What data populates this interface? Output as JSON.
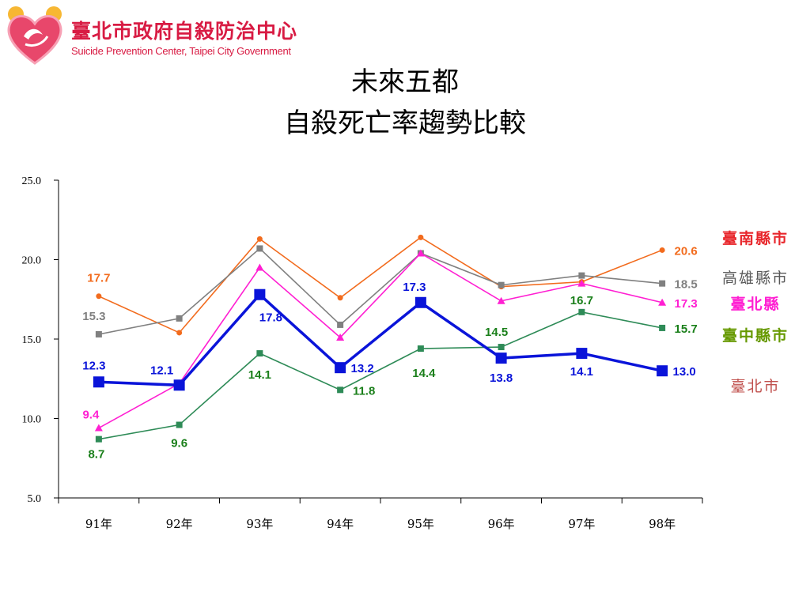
{
  "header": {
    "org_name_cn": "臺北市政府自殺防治中心",
    "org_name_en": "Suicide Prevention Center, Taipei City Government",
    "logo_icon": "heart-logo-icon"
  },
  "colors": {
    "brand": "#d81b43",
    "tainan_county": "#f26b1d",
    "kaohsiung_county": "#808080",
    "taipei_county": "#ff1fd2",
    "taichung_county": "#2e8b57",
    "taipei_city": "#0a14d9",
    "value_green": "#1a7f1a"
  },
  "chart_data": {
    "type": "line",
    "title": "未來五都",
    "subtitle": "自殺死亡率趨勢比較",
    "xlabel": "",
    "ylabel": "",
    "categories": [
      "91年",
      "92年",
      "93年",
      "94年",
      "95年",
      "96年",
      "97年",
      "98年"
    ],
    "ylim": [
      5.0,
      25.0
    ],
    "yticks": [
      "5.0",
      "10.0",
      "15.0",
      "20.0",
      "25.0"
    ],
    "grid": false,
    "legend_position": "right",
    "series": [
      {
        "name": "臺南縣市",
        "color": "#f26b1d",
        "marker": "circle",
        "values": [
          17.7,
          15.4,
          21.3,
          17.6,
          21.4,
          18.3,
          18.6,
          20.6
        ],
        "labels": [
          {
            "index": 0,
            "text": "17.7"
          },
          {
            "index": 7,
            "text": "20.6"
          }
        ]
      },
      {
        "name": "高雄縣市",
        "color": "#808080",
        "marker": "square",
        "values": [
          15.3,
          16.3,
          20.7,
          15.9,
          20.4,
          18.4,
          19.0,
          18.5
        ],
        "labels": [
          {
            "index": 0,
            "text": "15.3"
          },
          {
            "index": 7,
            "text": "18.5"
          }
        ]
      },
      {
        "name": "臺北縣",
        "color": "#ff1fd2",
        "marker": "triangle",
        "values": [
          9.4,
          12.2,
          19.5,
          15.1,
          20.4,
          17.4,
          18.5,
          17.3
        ],
        "labels": [
          {
            "index": 0,
            "text": "9.4"
          },
          {
            "index": 7,
            "text": "17.3"
          }
        ]
      },
      {
        "name": "臺中縣市",
        "color": "#2e8b57",
        "marker": "square-small",
        "values": [
          8.7,
          9.6,
          14.1,
          11.8,
          14.4,
          14.5,
          16.7,
          15.7
        ],
        "labels": [
          {
            "index": 0,
            "text": "8.7"
          },
          {
            "index": 1,
            "text": "9.6"
          },
          {
            "index": 2,
            "text": "14.1"
          },
          {
            "index": 3,
            "text": "11.8"
          },
          {
            "index": 4,
            "text": "14.4"
          },
          {
            "index": 5,
            "text": "14.5"
          },
          {
            "index": 6,
            "text": "16.7"
          },
          {
            "index": 7,
            "text": "15.7"
          }
        ]
      },
      {
        "name": "臺北市",
        "color": "#0a14d9",
        "marker": "square-large",
        "values": [
          12.3,
          12.1,
          17.8,
          13.2,
          17.3,
          13.8,
          14.1,
          13.0
        ],
        "labels": [
          {
            "index": 0,
            "text": "12.3"
          },
          {
            "index": 1,
            "text": "12.1"
          },
          {
            "index": 2,
            "text": "17.8"
          },
          {
            "index": 3,
            "text": "13.2"
          },
          {
            "index": 4,
            "text": "17.3"
          },
          {
            "index": 5,
            "text": "13.8"
          },
          {
            "index": 6,
            "text": "14.1"
          },
          {
            "index": 7,
            "text": "13.0"
          }
        ]
      }
    ],
    "legend": [
      {
        "text": "臺南縣市",
        "color": "#e8262b"
      },
      {
        "text": "高雄縣市",
        "color": "#595959"
      },
      {
        "text": "臺北縣",
        "color": "#ff1fd2"
      },
      {
        "text": "臺中縣市",
        "color": "#669900"
      },
      {
        "text": "臺北市",
        "color": "#c0504d"
      }
    ]
  }
}
